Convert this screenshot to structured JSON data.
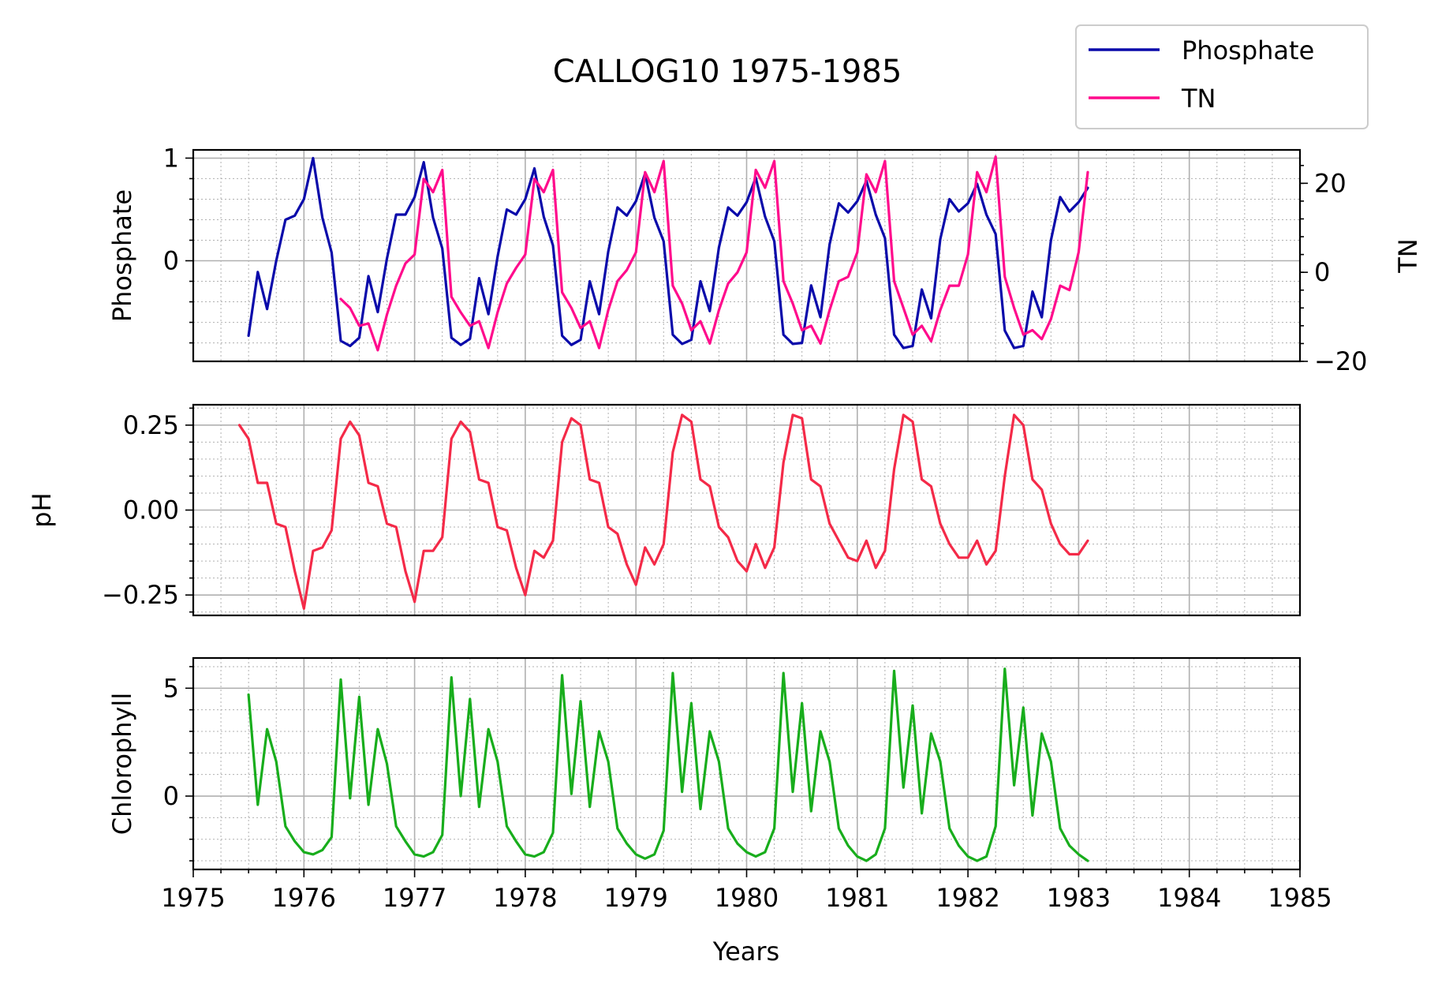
{
  "figure": {
    "title": "CALLOG10 1975-1985",
    "xlabel": "Years"
  },
  "colors": {
    "phosphate": "#0a0aaa",
    "tn": "#ff0b8c",
    "ph": "#f42a48",
    "chlorophyll": "#18ad1c"
  },
  "legend": {
    "placement": "top-right-outside",
    "entries": [
      "Phosphate",
      "TN"
    ]
  },
  "chart_data": [
    {
      "type": "line",
      "ylabel": "Phosphate",
      "y2label": "TN",
      "xlim": [
        1975,
        1985
      ],
      "ylim": [
        -0.98,
        1.08
      ],
      "y2lim": [
        -20,
        27.5
      ],
      "x_ticks": [
        "1975",
        "1976",
        "1977",
        "1978",
        "1979",
        "1980",
        "1981",
        "1982",
        "1983",
        "1984",
        "1985"
      ],
      "y_ticks": [
        "1",
        "0"
      ],
      "y_tick_values": [
        1,
        0
      ],
      "y2_ticks": [
        "20",
        "0",
        "−20"
      ],
      "y2_tick_values": [
        20,
        0,
        -20
      ],
      "grid": true,
      "series": [
        {
          "name": "Phosphate",
          "axis": "left",
          "x": [
            1975.5,
            1975.583,
            1975.667,
            1975.75,
            1975.833,
            1975.917,
            1976.0,
            1976.083,
            1976.167,
            1976.25,
            1976.333,
            1976.417,
            1976.5,
            1976.583,
            1976.667,
            1976.75,
            1976.833,
            1976.917,
            1977.0,
            1977.083,
            1977.167,
            1977.25,
            1977.333,
            1977.417,
            1977.5,
            1977.583,
            1977.667,
            1977.75,
            1977.833,
            1977.917,
            1978.0,
            1978.083,
            1978.167,
            1978.25,
            1978.333,
            1978.417,
            1978.5,
            1978.583,
            1978.667,
            1978.75,
            1978.833,
            1978.917,
            1979.0,
            1979.083,
            1979.167,
            1979.25,
            1979.333,
            1979.417,
            1979.5,
            1979.583,
            1979.667,
            1979.75,
            1979.833,
            1979.917,
            1980.0,
            1980.083,
            1980.167,
            1980.25,
            1980.333,
            1980.417,
            1980.5,
            1980.583,
            1980.667,
            1980.75,
            1980.833,
            1980.917,
            1981.0,
            1981.083,
            1981.167,
            1981.25,
            1981.333,
            1981.417,
            1981.5,
            1981.583,
            1981.667,
            1981.75,
            1981.833,
            1981.917,
            1982.0,
            1982.083,
            1982.167,
            1982.25,
            1982.333,
            1982.417,
            1982.5,
            1982.583,
            1982.667,
            1982.75,
            1982.833,
            1982.917,
            1983.0,
            1983.083
          ],
          "values": [
            -0.73,
            -0.11,
            -0.47,
            0.0,
            0.4,
            0.44,
            0.6,
            1.0,
            0.42,
            0.08,
            -0.78,
            -0.83,
            -0.75,
            -0.15,
            -0.5,
            0.02,
            0.45,
            0.45,
            0.62,
            0.96,
            0.42,
            0.12,
            -0.75,
            -0.82,
            -0.76,
            -0.17,
            -0.52,
            0.04,
            0.5,
            0.45,
            0.6,
            0.9,
            0.43,
            0.15,
            -0.73,
            -0.82,
            -0.77,
            -0.2,
            -0.52,
            0.09,
            0.52,
            0.44,
            0.58,
            0.85,
            0.42,
            0.19,
            -0.72,
            -0.81,
            -0.77,
            -0.2,
            -0.49,
            0.13,
            0.52,
            0.44,
            0.57,
            0.81,
            0.43,
            0.19,
            -0.72,
            -0.81,
            -0.8,
            -0.24,
            -0.55,
            0.16,
            0.56,
            0.47,
            0.58,
            0.78,
            0.45,
            0.22,
            -0.72,
            -0.85,
            -0.83,
            -0.28,
            -0.56,
            0.21,
            0.6,
            0.48,
            0.56,
            0.75,
            0.45,
            0.26,
            -0.68,
            -0.85,
            -0.83,
            -0.3,
            -0.55,
            0.2,
            0.62,
            0.48,
            0.57,
            0.71
          ]
        },
        {
          "name": "TN",
          "axis": "right",
          "x": [
            1976.333,
            1976.417,
            1976.5,
            1976.583,
            1976.667,
            1976.75,
            1976.833,
            1976.917,
            1977.0,
            1977.083,
            1977.167,
            1977.25,
            1977.333,
            1977.417,
            1977.5,
            1977.583,
            1977.667,
            1977.75,
            1977.833,
            1977.917,
            1978.0,
            1978.083,
            1978.167,
            1978.25,
            1978.333,
            1978.417,
            1978.5,
            1978.583,
            1978.667,
            1978.75,
            1978.833,
            1978.917,
            1979.0,
            1979.083,
            1979.167,
            1979.25,
            1979.333,
            1979.417,
            1979.5,
            1979.583,
            1979.667,
            1979.75,
            1979.833,
            1979.917,
            1980.0,
            1980.083,
            1980.167,
            1980.25,
            1980.333,
            1980.417,
            1980.5,
            1980.583,
            1980.667,
            1980.75,
            1980.833,
            1980.917,
            1981.0,
            1981.083,
            1981.167,
            1981.25,
            1981.333,
            1981.417,
            1981.5,
            1981.583,
            1981.667,
            1981.75,
            1981.833,
            1981.917,
            1982.0,
            1982.083,
            1982.167,
            1982.25,
            1982.333,
            1982.417,
            1982.5,
            1982.583,
            1982.667,
            1982.75,
            1982.833,
            1982.917,
            1983.0,
            1983.083
          ],
          "values": [
            -6,
            -8,
            -12,
            -11.5,
            -17.5,
            -9.5,
            -3,
            2,
            4,
            21,
            18,
            23,
            -5.5,
            -9,
            -12,
            -11,
            -17,
            -9,
            -2.5,
            1,
            4,
            21,
            18,
            23,
            -4.5,
            -8,
            -12.5,
            -11,
            -17,
            -8.5,
            -2,
            0.5,
            4.5,
            22.5,
            18,
            25,
            -3,
            -7,
            -13,
            -11,
            -16,
            -8.5,
            -2.5,
            0,
            4.5,
            23,
            19,
            25,
            -2,
            -7,
            -13,
            -12,
            -16,
            -8.5,
            -2,
            -1,
            4.5,
            22,
            18,
            25,
            -2,
            -8,
            -14,
            -12,
            -15.5,
            -8.5,
            -3,
            -3,
            4,
            22.5,
            18,
            26,
            -1,
            -8,
            -14,
            -13,
            -15,
            -10.5,
            -3,
            -4,
            4.5,
            22.5
          ]
        }
      ]
    },
    {
      "type": "line",
      "ylabel": "pH",
      "xlim": [
        1975,
        1985
      ],
      "ylim": [
        -0.31,
        0.31
      ],
      "x_ticks": [
        "1975",
        "1976",
        "1977",
        "1978",
        "1979",
        "1980",
        "1981",
        "1982",
        "1983",
        "1984",
        "1985"
      ],
      "y_ticks": [
        "0.25",
        "0.00",
        "−0.25"
      ],
      "y_tick_values": [
        0.25,
        0,
        -0.25
      ],
      "grid": true,
      "series": [
        {
          "name": "pH",
          "x": [
            1975.417,
            1975.5,
            1975.583,
            1975.667,
            1975.75,
            1975.833,
            1975.917,
            1976.0,
            1976.083,
            1976.167,
            1976.25,
            1976.333,
            1976.417,
            1976.5,
            1976.583,
            1976.667,
            1976.75,
            1976.833,
            1976.917,
            1977.0,
            1977.083,
            1977.167,
            1977.25,
            1977.333,
            1977.417,
            1977.5,
            1977.583,
            1977.667,
            1977.75,
            1977.833,
            1977.917,
            1978.0,
            1978.083,
            1978.167,
            1978.25,
            1978.333,
            1978.417,
            1978.5,
            1978.583,
            1978.667,
            1978.75,
            1978.833,
            1978.917,
            1979.0,
            1979.083,
            1979.167,
            1979.25,
            1979.333,
            1979.417,
            1979.5,
            1979.583,
            1979.667,
            1979.75,
            1979.833,
            1979.917,
            1980.0,
            1980.083,
            1980.167,
            1980.25,
            1980.333,
            1980.417,
            1980.5,
            1980.583,
            1980.667,
            1980.75,
            1980.833,
            1980.917,
            1981.0,
            1981.083,
            1981.167,
            1981.25,
            1981.333,
            1981.417,
            1981.5,
            1981.583,
            1981.667,
            1981.75,
            1981.833,
            1981.917,
            1982.0,
            1982.083,
            1982.167,
            1982.25,
            1982.333,
            1982.417,
            1982.5,
            1982.583,
            1982.667,
            1982.75,
            1982.833,
            1982.917,
            1983.0,
            1983.083
          ],
          "values": [
            0.25,
            0.21,
            0.08,
            0.08,
            -0.04,
            -0.05,
            -0.18,
            -0.29,
            -0.12,
            -0.11,
            -0.06,
            0.21,
            0.26,
            0.22,
            0.08,
            0.07,
            -0.04,
            -0.05,
            -0.18,
            -0.27,
            -0.12,
            -0.12,
            -0.08,
            0.21,
            0.26,
            0.23,
            0.09,
            0.08,
            -0.05,
            -0.06,
            -0.17,
            -0.25,
            -0.12,
            -0.14,
            -0.09,
            0.2,
            0.27,
            0.25,
            0.09,
            0.08,
            -0.05,
            -0.07,
            -0.16,
            -0.22,
            -0.11,
            -0.16,
            -0.1,
            0.17,
            0.28,
            0.26,
            0.09,
            0.07,
            -0.05,
            -0.08,
            -0.15,
            -0.18,
            -0.1,
            -0.17,
            -0.11,
            0.14,
            0.28,
            0.27,
            0.09,
            0.07,
            -0.04,
            -0.09,
            -0.14,
            -0.15,
            -0.09,
            -0.17,
            -0.12,
            0.12,
            0.28,
            0.26,
            0.09,
            0.07,
            -0.04,
            -0.1,
            -0.14,
            -0.14,
            -0.09,
            -0.16,
            -0.12,
            0.1,
            0.28,
            0.25,
            0.09,
            0.06,
            -0.04,
            -0.1,
            -0.13,
            -0.13,
            -0.09
          ]
        }
      ]
    },
    {
      "type": "line",
      "ylabel": "Chlorophyll",
      "xlim": [
        1975,
        1985
      ],
      "ylim": [
        -3.4,
        6.4
      ],
      "x_ticks": [
        "1975",
        "1976",
        "1977",
        "1978",
        "1979",
        "1980",
        "1981",
        "1982",
        "1983",
        "1984",
        "1985"
      ],
      "y_ticks": [
        "5",
        "0"
      ],
      "y_tick_values": [
        5,
        0
      ],
      "grid": true,
      "series": [
        {
          "name": "Chlorophyll",
          "x": [
            1975.5,
            1975.583,
            1975.667,
            1975.75,
            1975.833,
            1975.917,
            1976.0,
            1976.083,
            1976.167,
            1976.25,
            1976.333,
            1976.417,
            1976.5,
            1976.583,
            1976.667,
            1976.75,
            1976.833,
            1976.917,
            1977.0,
            1977.083,
            1977.167,
            1977.25,
            1977.333,
            1977.417,
            1977.5,
            1977.583,
            1977.667,
            1977.75,
            1977.833,
            1977.917,
            1978.0,
            1978.083,
            1978.167,
            1978.25,
            1978.333,
            1978.417,
            1978.5,
            1978.583,
            1978.667,
            1978.75,
            1978.833,
            1978.917,
            1979.0,
            1979.083,
            1979.167,
            1979.25,
            1979.333,
            1979.417,
            1979.5,
            1979.583,
            1979.667,
            1979.75,
            1979.833,
            1979.917,
            1980.0,
            1980.083,
            1980.167,
            1980.25,
            1980.333,
            1980.417,
            1980.5,
            1980.583,
            1980.667,
            1980.75,
            1980.833,
            1980.917,
            1981.0,
            1981.083,
            1981.167,
            1981.25,
            1981.333,
            1981.417,
            1981.5,
            1981.583,
            1981.667,
            1981.75,
            1981.833,
            1981.917,
            1982.0,
            1982.083,
            1982.167,
            1982.25,
            1982.333,
            1982.417,
            1982.5,
            1982.583,
            1982.667,
            1982.75,
            1982.833,
            1982.917,
            1983.0,
            1983.083
          ],
          "values": [
            4.7,
            -0.4,
            3.1,
            1.6,
            -1.4,
            -2.1,
            -2.6,
            -2.7,
            -2.5,
            -1.9,
            5.4,
            -0.1,
            4.6,
            -0.4,
            3.1,
            1.5,
            -1.4,
            -2.1,
            -2.7,
            -2.8,
            -2.6,
            -1.8,
            5.5,
            0.0,
            4.5,
            -0.5,
            3.1,
            1.6,
            -1.4,
            -2.1,
            -2.7,
            -2.8,
            -2.6,
            -1.7,
            5.6,
            0.1,
            4.4,
            -0.5,
            3.0,
            1.6,
            -1.5,
            -2.2,
            -2.7,
            -2.9,
            -2.7,
            -1.6,
            5.7,
            0.2,
            4.3,
            -0.6,
            3.0,
            1.6,
            -1.5,
            -2.2,
            -2.6,
            -2.8,
            -2.6,
            -1.5,
            5.7,
            0.2,
            4.3,
            -0.7,
            3.0,
            1.6,
            -1.5,
            -2.3,
            -2.8,
            -3.0,
            -2.7,
            -1.5,
            5.8,
            0.4,
            4.2,
            -0.8,
            2.9,
            1.6,
            -1.5,
            -2.3,
            -2.8,
            -3.0,
            -2.8,
            -1.4,
            5.9,
            0.5,
            4.1,
            -0.9,
            2.9,
            1.6,
            -1.5,
            -2.3,
            -2.7,
            -3.0
          ]
        }
      ]
    }
  ]
}
